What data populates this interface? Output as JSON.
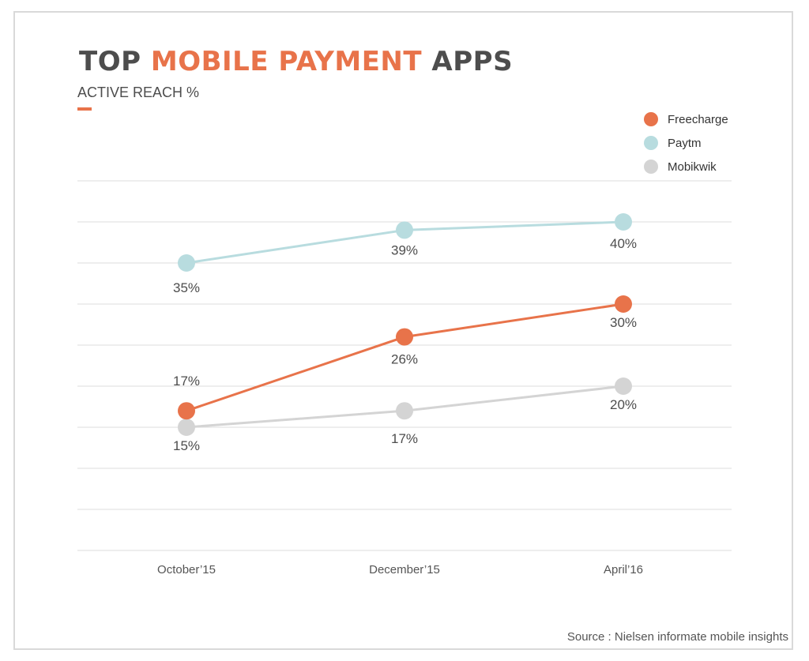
{
  "header": {
    "title_part1": "TOP ",
    "title_accent": "MOBILE PAYMENT",
    "title_part2": " APPS",
    "subtitle": "ACTIVE REACH %"
  },
  "colors": {
    "accent": "#e8734a",
    "freecharge": "#e8734a",
    "paytm": "#b8dcdf",
    "mobikwik": "#d4d4d4",
    "grid": "#dddddd"
  },
  "chart_data": {
    "type": "line",
    "title": "TOP MOBILE PAYMENT APPS",
    "subtitle": "ACTIVE REACH %",
    "categories": [
      "October’15",
      "December’15",
      "April’16"
    ],
    "xlabel": "",
    "ylabel": "",
    "ylim": [
      0,
      45
    ],
    "grid": true,
    "legend_position": "top-right",
    "series": [
      {
        "name": "Freecharge",
        "values": [
          17,
          26,
          30
        ],
        "labels": [
          "17%",
          "26%",
          "30%"
        ],
        "color": "#e8734a"
      },
      {
        "name": "Paytm",
        "values": [
          35,
          39,
          40
        ],
        "labels": [
          "35%",
          "39%",
          "40%"
        ],
        "color": "#b8dcdf"
      },
      {
        "name": "Mobikwik",
        "values": [
          15,
          17,
          20
        ],
        "labels": [
          "15%",
          "17%",
          "20%"
        ],
        "color": "#d4d4d4"
      }
    ]
  },
  "legend": {
    "items": [
      {
        "label": "Freecharge"
      },
      {
        "label": "Paytm"
      },
      {
        "label": "Mobikwik"
      }
    ]
  },
  "footer": {
    "source": "Source : Nielsen informate mobile insights"
  }
}
